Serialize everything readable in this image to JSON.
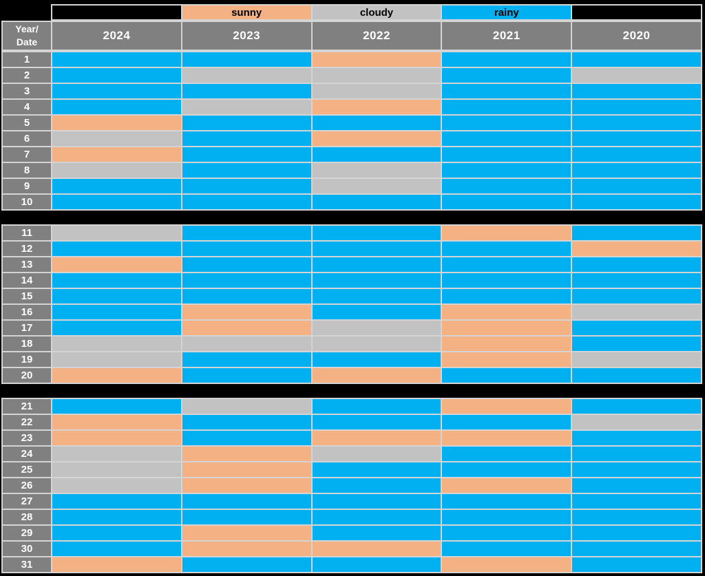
{
  "colors": {
    "page_bg": "#000000",
    "grid_line": "#d4d4d4",
    "header_bg": "#808080",
    "header_text": "#ffffff",
    "legend_text": "#000000"
  },
  "chart_data": {
    "type": "heatmap",
    "title": "",
    "corner_label": "Year/\nDate",
    "columns": [
      "2024",
      "2023",
      "2022",
      "2021",
      "2020"
    ],
    "legend": [
      {
        "label": "sunny",
        "color": "#f4b183"
      },
      {
        "label": "cloudy",
        "color": "#c2c2c2"
      },
      {
        "label": "rainy",
        "color": "#00b0f0"
      }
    ],
    "layout_hint": "three row blocks (1-10, 11-20, 21-31) separated by black bands",
    "blocks": [
      {
        "rows": [
          {
            "date": "1",
            "values": [
              "rainy",
              "rainy",
              "sunny",
              "rainy",
              "rainy"
            ]
          },
          {
            "date": "2",
            "values": [
              "rainy",
              "cloudy",
              "cloudy",
              "rainy",
              "cloudy"
            ]
          },
          {
            "date": "3",
            "values": [
              "rainy",
              "rainy",
              "cloudy",
              "rainy",
              "rainy"
            ]
          },
          {
            "date": "4",
            "values": [
              "rainy",
              "cloudy",
              "sunny",
              "rainy",
              "rainy"
            ]
          },
          {
            "date": "5",
            "values": [
              "sunny",
              "rainy",
              "rainy",
              "rainy",
              "rainy"
            ]
          },
          {
            "date": "6",
            "values": [
              "cloudy",
              "rainy",
              "sunny",
              "rainy",
              "rainy"
            ]
          },
          {
            "date": "7",
            "values": [
              "sunny",
              "rainy",
              "rainy",
              "rainy",
              "rainy"
            ]
          },
          {
            "date": "8",
            "values": [
              "cloudy",
              "rainy",
              "cloudy",
              "rainy",
              "rainy"
            ]
          },
          {
            "date": "9",
            "values": [
              "rainy",
              "rainy",
              "cloudy",
              "rainy",
              "rainy"
            ]
          },
          {
            "date": "10",
            "values": [
              "rainy",
              "rainy",
              "rainy",
              "rainy",
              "rainy"
            ]
          }
        ]
      },
      {
        "rows": [
          {
            "date": "11",
            "values": [
              "cloudy",
              "rainy",
              "rainy",
              "sunny",
              "rainy"
            ]
          },
          {
            "date": "12",
            "values": [
              "rainy",
              "rainy",
              "rainy",
              "rainy",
              "sunny"
            ]
          },
          {
            "date": "13",
            "values": [
              "sunny",
              "rainy",
              "rainy",
              "rainy",
              "rainy"
            ]
          },
          {
            "date": "14",
            "values": [
              "rainy",
              "rainy",
              "rainy",
              "rainy",
              "rainy"
            ]
          },
          {
            "date": "15",
            "values": [
              "rainy",
              "rainy",
              "rainy",
              "rainy",
              "rainy"
            ]
          },
          {
            "date": "16",
            "values": [
              "rainy",
              "sunny",
              "rainy",
              "sunny",
              "cloudy"
            ]
          },
          {
            "date": "17",
            "values": [
              "rainy",
              "sunny",
              "cloudy",
              "sunny",
              "rainy"
            ]
          },
          {
            "date": "18",
            "values": [
              "cloudy",
              "cloudy",
              "cloudy",
              "sunny",
              "rainy"
            ]
          },
          {
            "date": "19",
            "values": [
              "cloudy",
              "rainy",
              "rainy",
              "sunny",
              "cloudy"
            ]
          },
          {
            "date": "20",
            "values": [
              "sunny",
              "rainy",
              "sunny",
              "rainy",
              "rainy"
            ]
          }
        ]
      },
      {
        "rows": [
          {
            "date": "21",
            "values": [
              "rainy",
              "cloudy",
              "rainy",
              "sunny",
              "rainy"
            ]
          },
          {
            "date": "22",
            "values": [
              "sunny",
              "rainy",
              "rainy",
              "rainy",
              "cloudy"
            ]
          },
          {
            "date": "23",
            "values": [
              "sunny",
              "rainy",
              "sunny",
              "sunny",
              "rainy"
            ]
          },
          {
            "date": "24",
            "values": [
              "cloudy",
              "sunny",
              "cloudy",
              "rainy",
              "rainy"
            ]
          },
          {
            "date": "25",
            "values": [
              "cloudy",
              "sunny",
              "rainy",
              "rainy",
              "rainy"
            ]
          },
          {
            "date": "26",
            "values": [
              "cloudy",
              "sunny",
              "rainy",
              "sunny",
              "rainy"
            ]
          },
          {
            "date": "27",
            "values": [
              "rainy",
              "rainy",
              "rainy",
              "rainy",
              "rainy"
            ]
          },
          {
            "date": "28",
            "values": [
              "rainy",
              "rainy",
              "rainy",
              "rainy",
              "rainy"
            ]
          },
          {
            "date": "29",
            "values": [
              "rainy",
              "sunny",
              "rainy",
              "rainy",
              "rainy"
            ]
          },
          {
            "date": "30",
            "values": [
              "rainy",
              "sunny",
              "sunny",
              "rainy",
              "rainy"
            ]
          },
          {
            "date": "31",
            "values": [
              "sunny",
              "rainy",
              "rainy",
              "sunny",
              "rainy"
            ]
          }
        ]
      }
    ]
  }
}
